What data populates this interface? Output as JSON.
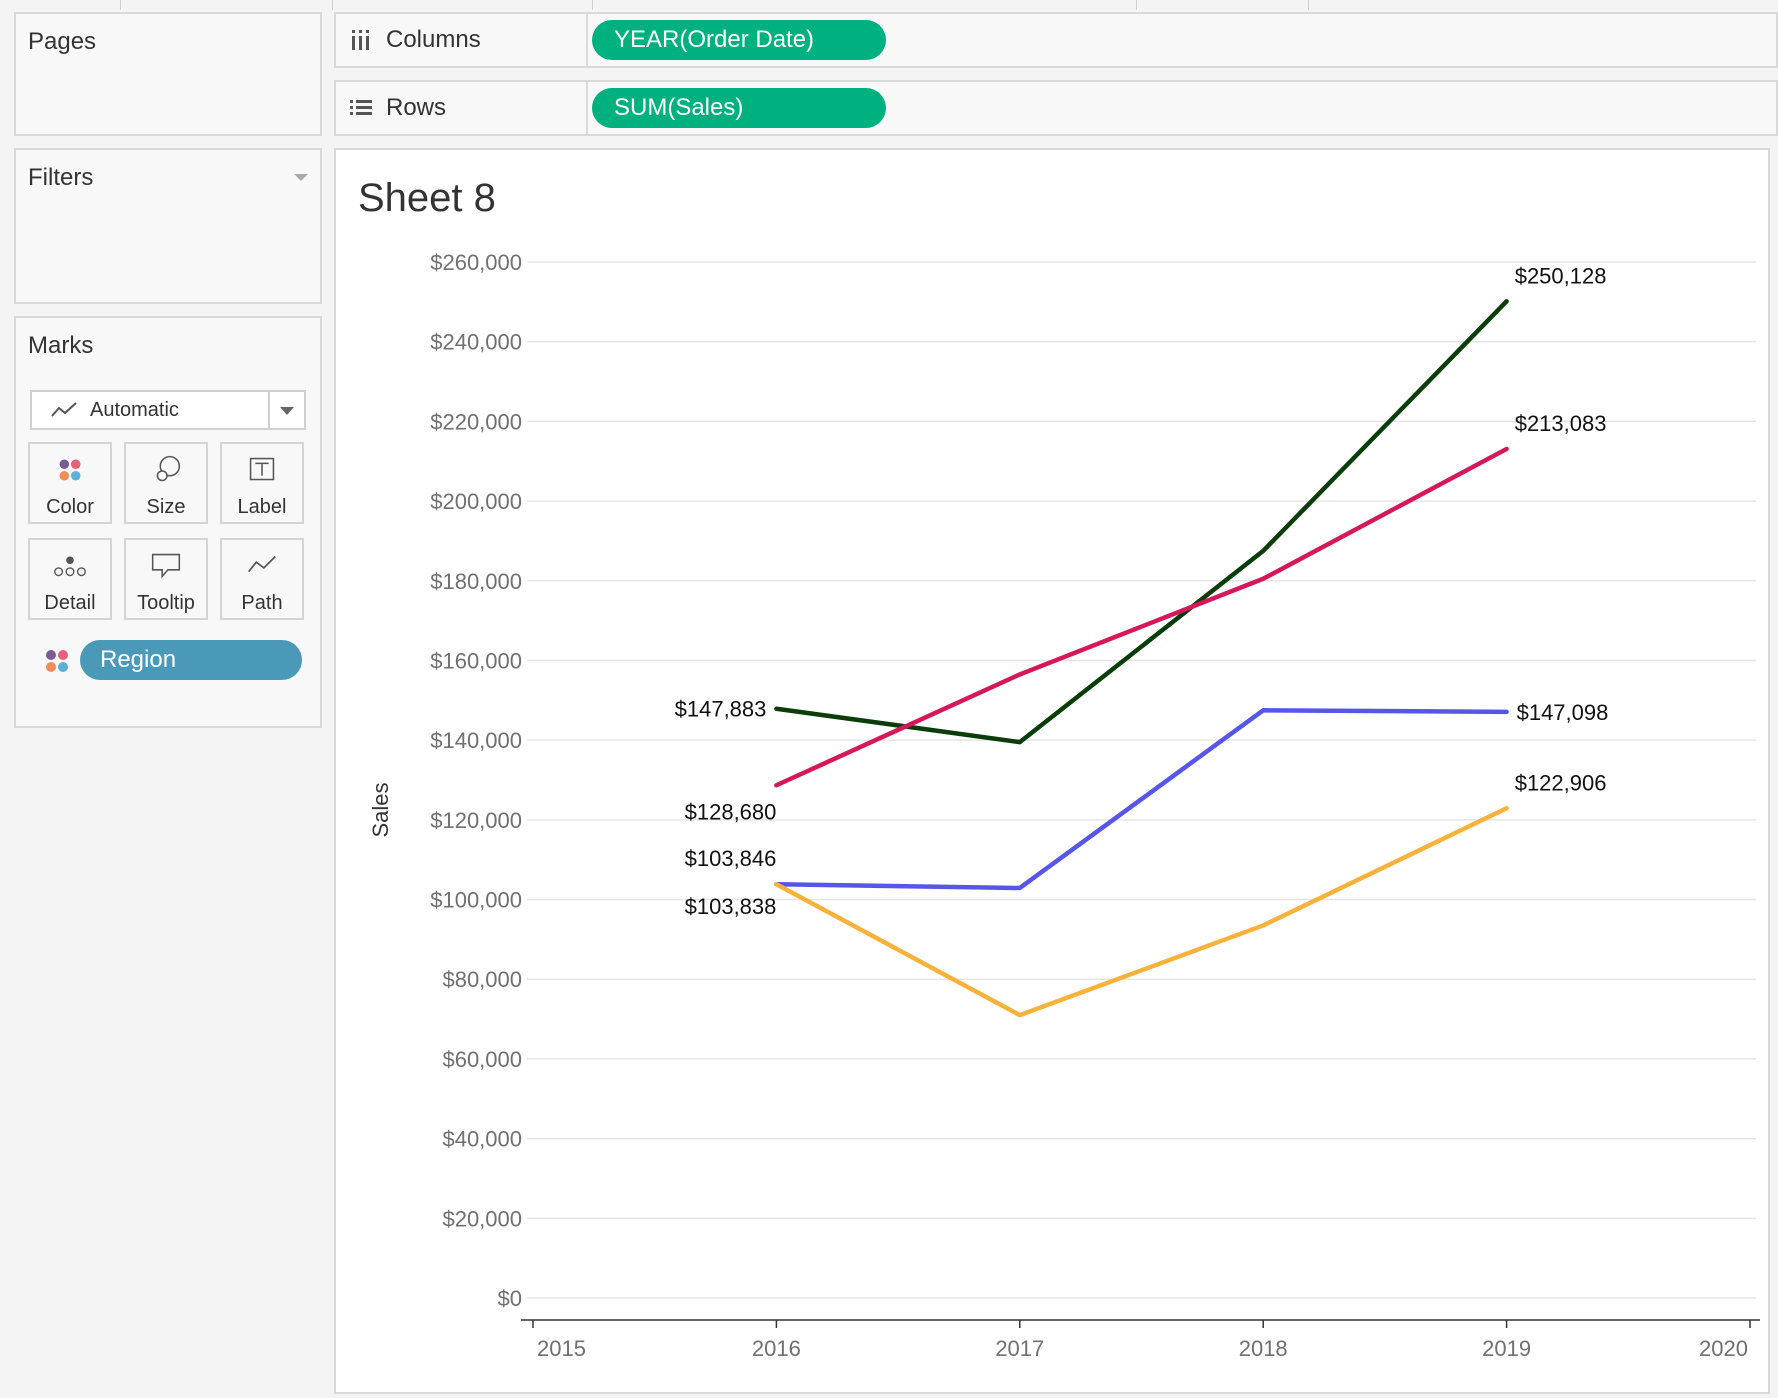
{
  "pages": {
    "title": "Pages"
  },
  "filters": {
    "title": "Filters"
  },
  "marks": {
    "title": "Marks",
    "mark_type": "Automatic",
    "buttons": [
      {
        "label": "Color",
        "icon": "color-dots-icon"
      },
      {
        "label": "Size",
        "icon": "size-icon"
      },
      {
        "label": "Label",
        "icon": "label-icon"
      },
      {
        "label": "Detail",
        "icon": "detail-icon"
      },
      {
        "label": "Tooltip",
        "icon": "tooltip-icon"
      },
      {
        "label": "Path",
        "icon": "path-icon"
      }
    ],
    "color_field": "Region"
  },
  "shelves": {
    "columns": {
      "label": "Columns",
      "pill": "YEAR(Order Date)"
    },
    "rows": {
      "label": "Rows",
      "pill": "SUM(Sales)"
    }
  },
  "view": {
    "sheet_title": "Sheet 8"
  },
  "colors": {
    "shelf_pill": "#00b180",
    "region_pill": "#4a99b8",
    "series": [
      "#0b3d0b",
      "#d6175a",
      "#5656e8",
      "#f7b23b"
    ]
  },
  "chart_data": {
    "type": "line",
    "title": "Sheet 8",
    "xlabel": "",
    "ylabel": "Sales",
    "x": [
      2016,
      2017,
      2018,
      2019
    ],
    "xlim": [
      2015,
      2020
    ],
    "x_ticks": [
      "2015",
      "2016",
      "2017",
      "2018",
      "2019",
      "2020"
    ],
    "ylim": [
      0,
      260000
    ],
    "y_ticks": [
      "$0",
      "$20,000",
      "$40,000",
      "$60,000",
      "$80,000",
      "$100,000",
      "$120,000",
      "$140,000",
      "$160,000",
      "$180,000",
      "$200,000",
      "$220,000",
      "$240,000",
      "$260,000"
    ],
    "grid": true,
    "series": [
      {
        "name": "series-dark-green",
        "color": "#0b3d0b",
        "values": [
          147883,
          139500,
          187500,
          250128
        ],
        "labels": {
          "0": "$147,883",
          "3": "$250,128"
        }
      },
      {
        "name": "series-crimson",
        "color": "#d6175a",
        "values": [
          128680,
          156500,
          180500,
          213083
        ],
        "labels": {
          "0": "$128,680",
          "3": "$213,083"
        }
      },
      {
        "name": "series-blue",
        "color": "#5656e8",
        "values": [
          103846,
          102900,
          147500,
          147098
        ],
        "labels": {
          "0": "$103,846",
          "3": "$147,098"
        }
      },
      {
        "name": "series-orange",
        "color": "#f7b23b",
        "values": [
          103838,
          71000,
          93500,
          122906
        ],
        "labels": {
          "0": "$103,838",
          "3": "$122,906"
        }
      }
    ]
  }
}
